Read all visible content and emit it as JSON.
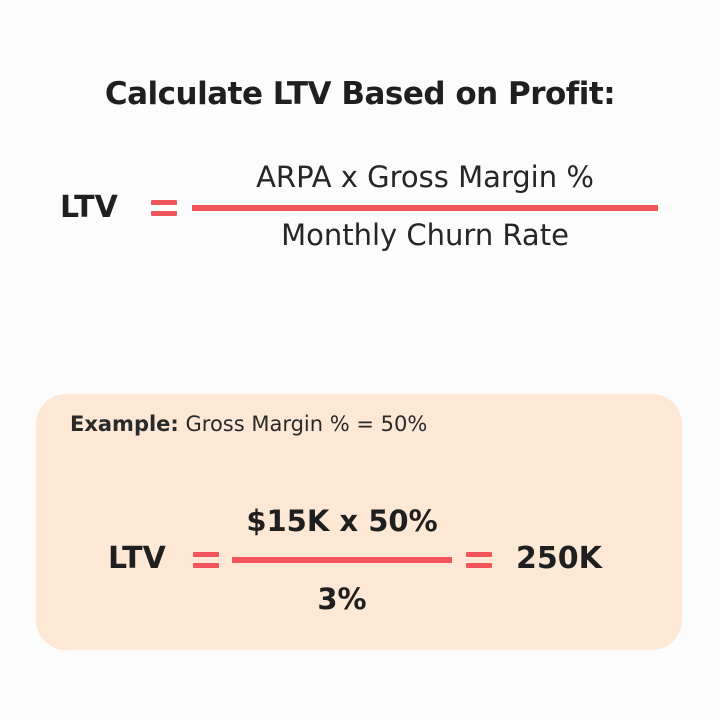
{
  "title": "Calculate LTV Based on Profit:",
  "formula": {
    "lhs": "LTV",
    "numerator": "ARPA x Gross Margin %",
    "denominator": "Monthly Churn Rate"
  },
  "example": {
    "label_bold": "Example:",
    "label_text": " Gross Margin % = 50%",
    "lhs": "LTV",
    "numerator": "$15K x 50%",
    "denominator": "3%",
    "result": "250K"
  },
  "colors": {
    "accent": "#f2565a",
    "card_background": "#fde7d5",
    "page_background": "#fcfcfc",
    "text": "#1f1f1f"
  }
}
